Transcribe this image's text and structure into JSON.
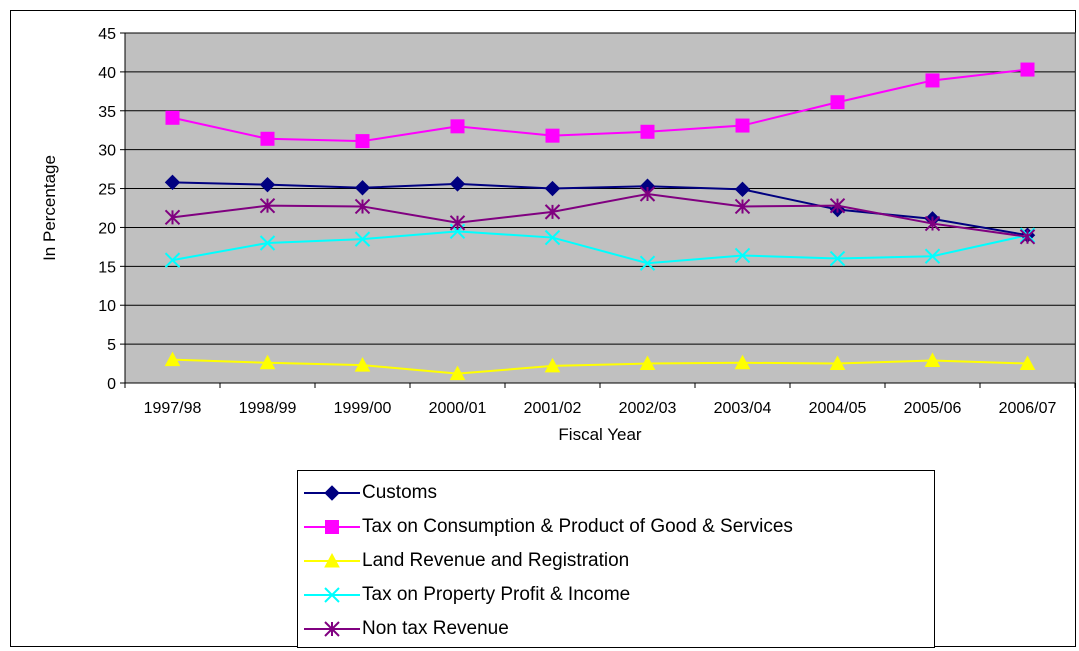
{
  "chart_data": {
    "type": "line",
    "title": "",
    "xlabel": "Fiscal Year",
    "ylabel": "In Percentage",
    "ylim": [
      0,
      45
    ],
    "yticks": [
      0,
      5,
      10,
      15,
      20,
      25,
      30,
      35,
      40,
      45
    ],
    "grid": true,
    "plot_background": "#c0c0c0",
    "legend_position": "bottom",
    "categories": [
      "1997/98",
      "1998/99",
      "1999/00",
      "2000/01",
      "2001/02",
      "2002/03",
      "2003/04",
      "2004/05",
      "2005/06",
      "2006/07"
    ],
    "series": [
      {
        "name": "Customs",
        "color": "#000080",
        "marker": "diamond",
        "values": [
          25.8,
          25.5,
          25.1,
          25.6,
          25.0,
          25.3,
          24.9,
          22.3,
          21.1,
          19.0
        ]
      },
      {
        "name": "Tax on Consumption & Product of Good & Services",
        "color": "#ff00ff",
        "marker": "square",
        "values": [
          34.1,
          31.4,
          31.1,
          33.0,
          31.8,
          32.3,
          33.1,
          36.1,
          38.9,
          40.3
        ]
      },
      {
        "name": "Land Revenue and Registration",
        "color": "#ffff00",
        "marker": "triangle",
        "values": [
          3.0,
          2.6,
          2.3,
          1.2,
          2.2,
          2.5,
          2.6,
          2.5,
          2.9,
          2.5
        ]
      },
      {
        "name": "Tax on Property Profit & Income",
        "color": "#00ffff",
        "marker": "x",
        "values": [
          15.8,
          18.0,
          18.5,
          19.5,
          18.7,
          15.4,
          16.4,
          16.0,
          16.3,
          19.0
        ]
      },
      {
        "name": "Non tax Revenue",
        "color": "#800080",
        "marker": "asterisk",
        "values": [
          21.3,
          22.8,
          22.7,
          20.6,
          22.0,
          24.3,
          22.7,
          22.8,
          20.5,
          18.8
        ]
      }
    ]
  }
}
